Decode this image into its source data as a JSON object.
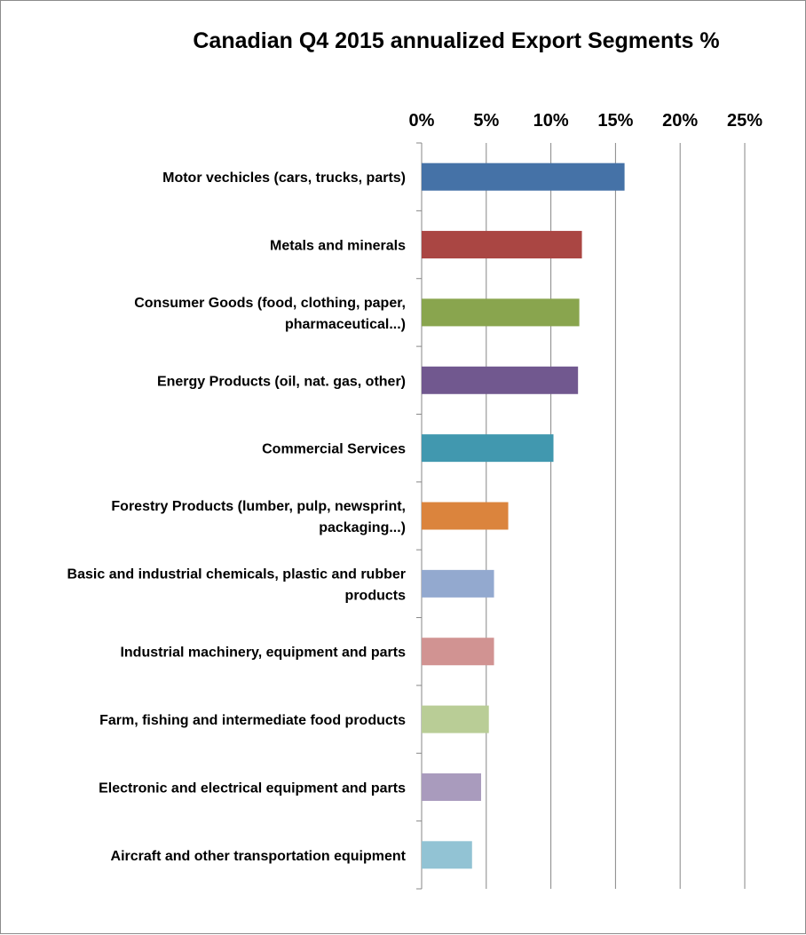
{
  "chart_data": {
    "type": "bar",
    "orientation": "horizontal",
    "title": "Canadian Q4 2015 annualized Export Segments %",
    "xlabel": "",
    "ylabel": "",
    "xlim": [
      0,
      25
    ],
    "x_ticks": [
      "0%",
      "5%",
      "10%",
      "15%",
      "20%",
      "25%"
    ],
    "x_axis_position": "top",
    "grid": true,
    "legend": "none",
    "categories": [
      [
        "Motor vechicles (cars, trucks, parts)"
      ],
      [
        "Metals and minerals"
      ],
      [
        "Consumer Goods (food, clothing, paper,",
        "pharmaceutical...)"
      ],
      [
        "Energy Products (oil, nat. gas, other)"
      ],
      [
        "Commercial Services"
      ],
      [
        "Forestry Products (lumber, pulp, newsprint,",
        "packaging...)"
      ],
      [
        "Basic and industrial chemicals, plastic and rubber",
        "products"
      ],
      [
        "Industrial machinery, equipment and parts"
      ],
      [
        "Farm, fishing and intermediate food products"
      ],
      [
        "Electronic and electrical equipment and parts"
      ],
      [
        "Aircraft and other transportation equipment"
      ]
    ],
    "values": [
      15.7,
      12.4,
      12.2,
      12.1,
      10.2,
      6.7,
      5.6,
      5.6,
      5.2,
      4.6,
      3.9
    ],
    "colors": [
      "#4572a7",
      "#aa4643",
      "#89a54e",
      "#71588f",
      "#4198af",
      "#db843d",
      "#93a9cf",
      "#d19392",
      "#b9cd96",
      "#a99bbd",
      "#92c3d4"
    ]
  }
}
